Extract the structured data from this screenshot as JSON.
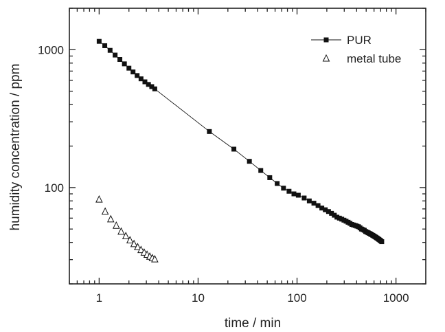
{
  "chart_data": {
    "type": "scatter",
    "title": "",
    "xlabel": "time / min",
    "ylabel": "humidity concentration / ppm",
    "x_scale": "log",
    "y_scale": "log",
    "xlim": [
      0.5,
      2000
    ],
    "ylim": [
      20,
      2000
    ],
    "x_ticks": [
      {
        "value": 1,
        "label": "1"
      },
      {
        "value": 10,
        "label": "10"
      },
      {
        "value": 100,
        "label": "100"
      },
      {
        "value": 1000,
        "label": "1000"
      }
    ],
    "y_ticks": [
      {
        "value": 100,
        "label": "100"
      },
      {
        "value": 1000,
        "label": "1000"
      }
    ],
    "grid": false,
    "legend_position": "top-right",
    "series": [
      {
        "name": "PUR",
        "marker": "filled-square",
        "line": true,
        "color": "#111111",
        "x": [
          1.0,
          1.14,
          1.29,
          1.45,
          1.62,
          1.8,
          2.0,
          2.2,
          2.42,
          2.65,
          2.9,
          3.15,
          3.4,
          3.65,
          13,
          23,
          33,
          43,
          53,
          63,
          73,
          83,
          93,
          103,
          118,
          133,
          148,
          163,
          178,
          193,
          208,
          223,
          238,
          253,
          268,
          283,
          298,
          313,
          328,
          343,
          358,
          373,
          388,
          403,
          418,
          433,
          448,
          463,
          478,
          493,
          508,
          523,
          538,
          553,
          568,
          583,
          598,
          613,
          628,
          643,
          658,
          673,
          688,
          703,
          718
        ],
        "y": [
          1150,
          1070,
          990,
          915,
          850,
          790,
          735,
          690,
          650,
          615,
          585,
          560,
          540,
          520,
          255,
          190,
          155,
          133,
          118,
          107,
          99,
          94,
          90,
          88,
          84,
          80,
          77,
          74,
          71,
          69,
          67,
          65,
          63,
          61,
          60,
          59,
          58,
          57,
          56,
          55,
          54,
          53.5,
          53,
          52.5,
          52,
          51,
          50,
          49.5,
          49,
          48,
          47.5,
          47,
          46.5,
          46,
          45.5,
          45,
          44.5,
          44,
          43.5,
          43,
          42.5,
          42,
          41.5,
          41,
          40.5
        ]
      },
      {
        "name": "metal tube",
        "marker": "open-triangle",
        "line": false,
        "color": "#111111",
        "x": [
          1.0,
          1.15,
          1.31,
          1.49,
          1.67,
          1.86,
          2.05,
          2.25,
          2.45,
          2.65,
          2.85,
          3.05,
          3.25,
          3.45,
          3.65
        ],
        "y": [
          82,
          67,
          59,
          53,
          48,
          44.5,
          41.5,
          39,
          37,
          35.3,
          33.8,
          32.6,
          31.6,
          30.8,
          30.2
        ]
      }
    ]
  }
}
